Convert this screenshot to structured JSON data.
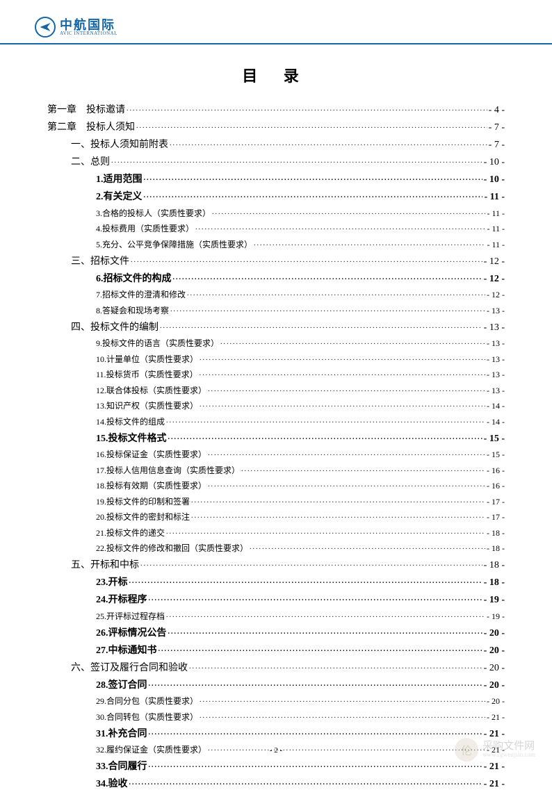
{
  "brand": {
    "cn": "中航国际",
    "en": "AVIC INTERNATIONAL",
    "accent_color": "#1565a5"
  },
  "title": "目 录",
  "page_number": "- 2 -",
  "watermark": {
    "cn": "采购文件网",
    "en": "www.cgwenjian.com"
  },
  "entries": [
    {
      "level": 0,
      "bold": false,
      "label": "第一章",
      "title": "投标邀请",
      "page": "- 4 -",
      "gap": true
    },
    {
      "level": 0,
      "bold": false,
      "label": "第二章",
      "title": "投标人须知",
      "page": "- 7 -",
      "gap": true
    },
    {
      "level": 1,
      "bold": false,
      "label": "一、",
      "title": "投标人须知前附表",
      "page": "- 7 -"
    },
    {
      "level": 1,
      "bold": false,
      "label": "二、",
      "title": "总则",
      "page": "- 10 -"
    },
    {
      "level": 2,
      "bold": true,
      "label": "1.",
      "title": "适用范围",
      "page": "- 10 -"
    },
    {
      "level": 2,
      "bold": true,
      "label": "2.",
      "title": "有关定义",
      "page": "- 11 -"
    },
    {
      "level": 3,
      "bold": false,
      "label": "3.",
      "title": "合格的投标人（实质性要求）",
      "page": "- 11 -"
    },
    {
      "level": 3,
      "bold": false,
      "label": "4.",
      "title": "投标费用（实质性要求）",
      "page": "-  11  -"
    },
    {
      "level": 3,
      "bold": false,
      "label": "5.",
      "title": "充分、公平竞争保障措施（实质性要求）",
      "page": "-  11  -"
    },
    {
      "level": 1,
      "bold": false,
      "label": "三、",
      "title": "招标文件",
      "page": "- 12 -"
    },
    {
      "level": 2,
      "bold": true,
      "label": "6.",
      "title": "招标文件的构成",
      "page": "- 12 -"
    },
    {
      "level": 3,
      "bold": false,
      "label": "7.",
      "title": "招标文件的澄清和修改",
      "page": "-  12  -"
    },
    {
      "level": 3,
      "bold": false,
      "label": "8.",
      "title": "答疑会和现场考察",
      "page": "-  13  -"
    },
    {
      "level": 1,
      "bold": false,
      "label": "四、",
      "title": "投标文件的编制",
      "page": "- 13 -"
    },
    {
      "level": 3,
      "bold": false,
      "label": "9.",
      "title": "投标文件的语言（实质性要求）",
      "page": "-  13  -"
    },
    {
      "level": 3,
      "bold": false,
      "label": "10.",
      "title": "计量单位（实质性要求）",
      "page": "-  13  -"
    },
    {
      "level": 3,
      "bold": false,
      "label": "11.",
      "title": "投标货币（实质性要求）",
      "page": "-  13  -"
    },
    {
      "level": 3,
      "bold": false,
      "label": "12.",
      "title": "联合体投标（实质性要求）",
      "page": "-  13  -"
    },
    {
      "level": 3,
      "bold": false,
      "label": "13.",
      "title": "知识产权（实质性要求）",
      "page": "-  14  -"
    },
    {
      "level": 3,
      "bold": false,
      "label": "14.",
      "title": "投标文件的组成",
      "page": "-  14  -"
    },
    {
      "level": 2,
      "bold": true,
      "label": "15.",
      "title": "投标文件格式",
      "page": "- 15 -"
    },
    {
      "level": 3,
      "bold": false,
      "label": "16.",
      "title": "投标保证金（实质性要求）",
      "page": "-  15  -"
    },
    {
      "level": 3,
      "bold": false,
      "label": "17.",
      "title": "投标人信用信息查询（实质性要求）",
      "page": "-  16  -"
    },
    {
      "level": 3,
      "bold": false,
      "label": "18.",
      "title": "投标有效期（实质性要求）",
      "page": "-  16  -"
    },
    {
      "level": 3,
      "bold": false,
      "label": "19.",
      "title": "投标文件的印制和签署",
      "page": "-  17  -"
    },
    {
      "level": 3,
      "bold": false,
      "label": "20.",
      "title": "投标文件的密封和标注",
      "page": "-  17  -"
    },
    {
      "level": 3,
      "bold": false,
      "label": "21.",
      "title": "投标文件的递交",
      "page": "-  18  -"
    },
    {
      "level": 3,
      "bold": false,
      "label": "22.",
      "title": "投标文件的修改和撤回（实质性要求）",
      "page": "-  18  -"
    },
    {
      "level": 1,
      "bold": false,
      "label": "五、",
      "title": "开标和中标",
      "page": "- 18 -"
    },
    {
      "level": 2,
      "bold": true,
      "label": "23.",
      "title": "开标",
      "page": "- 18 -"
    },
    {
      "level": 2,
      "bold": true,
      "label": "24.",
      "title": "开标程序",
      "page": "- 19 -"
    },
    {
      "level": 3,
      "bold": false,
      "label": "25.",
      "title": "开评标过程存档",
      "page": "-  19  -"
    },
    {
      "level": 2,
      "bold": true,
      "label": "26.",
      "title": "评标情况公告",
      "page": "- 20 -"
    },
    {
      "level": 2,
      "bold": true,
      "label": "27.",
      "title": "中标通知书",
      "page": "- 20 -"
    },
    {
      "level": 1,
      "bold": false,
      "label": "六、",
      "title": "签订及履行合同和验收",
      "page": "-  20  -"
    },
    {
      "level": 2,
      "bold": true,
      "label": "28.",
      "title": "签订合同",
      "page": "- 20 -"
    },
    {
      "level": 3,
      "bold": false,
      "label": "29.",
      "title": "合同分包（实质性要求）",
      "page": "-  20  -"
    },
    {
      "level": 3,
      "bold": false,
      "label": "30.",
      "title": "合同转包（实质性要求）",
      "page": "-  21  -"
    },
    {
      "level": 2,
      "bold": true,
      "label": "31.",
      "title": "补充合同",
      "page": "- 21 -"
    },
    {
      "level": 3,
      "bold": false,
      "label": "32.",
      "title": "履约保证金（实质性要求）",
      "page": "-  21  -"
    },
    {
      "level": 2,
      "bold": true,
      "label": "33.",
      "title": "合同履行",
      "page": "- 21 -"
    },
    {
      "level": 2,
      "bold": true,
      "label": "34.",
      "title": "验收",
      "page": "- 21 -"
    }
  ]
}
